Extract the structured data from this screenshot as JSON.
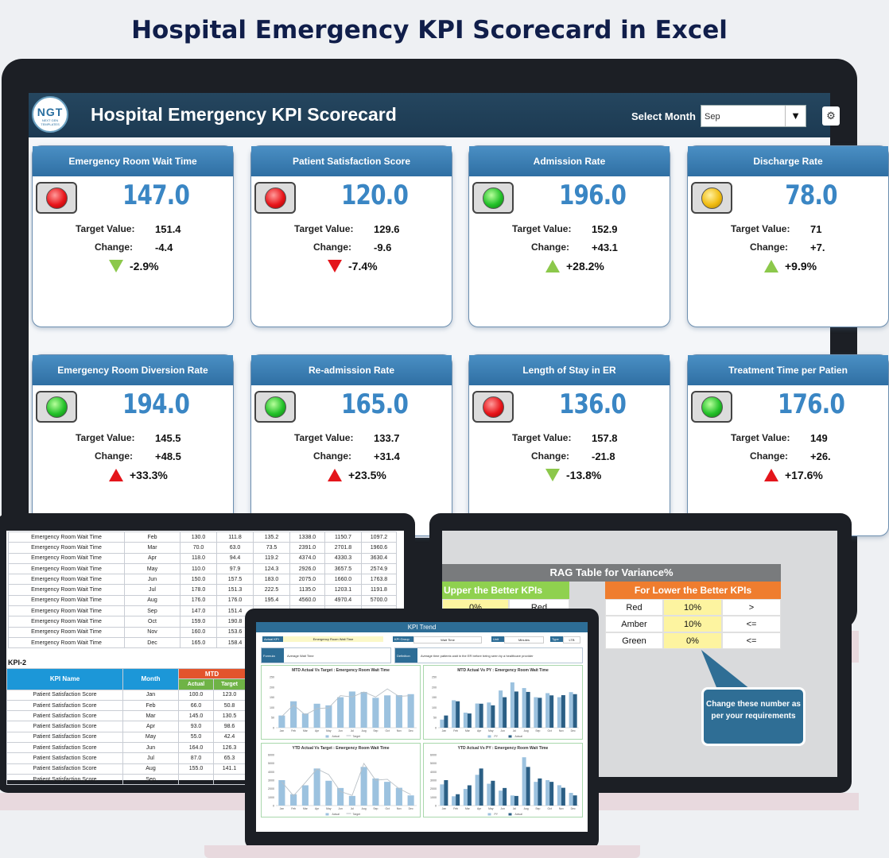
{
  "page_title": "Hospital Emergency KPI Scorecard in Excel",
  "dashboard": {
    "logo_text": "NGT",
    "logo_sub": "NEXT GEN TEMPLATES",
    "title": "Hospital Emergency KPI Scorecard",
    "month_label": "Select Month",
    "month_value": "Sep",
    "target_label": "Target Value:",
    "change_label": "Change:",
    "cards": [
      {
        "title": "Emergency Room Wait Time",
        "value": "147.0",
        "status": "red",
        "target": "151.4",
        "change": "-4.4",
        "pct": "-2.9%",
        "arrow": "down",
        "arrow_color": "green"
      },
      {
        "title": "Patient Satisfaction Score",
        "value": "120.0",
        "status": "red",
        "target": "129.6",
        "change": "-9.6",
        "pct": "-7.4%",
        "arrow": "down",
        "arrow_color": "red"
      },
      {
        "title": "Admission Rate",
        "value": "196.0",
        "status": "green",
        "target": "152.9",
        "change": "+43.1",
        "pct": "+28.2%",
        "arrow": "up",
        "arrow_color": "green"
      },
      {
        "title": "Discharge Rate",
        "value": "78.0",
        "status": "amber",
        "target": "71",
        "change": "+7.",
        "pct": "+9.9%",
        "arrow": "up",
        "arrow_color": "green"
      },
      {
        "title": "Emergency Room Diversion Rate",
        "value": "194.0",
        "status": "green",
        "target": "145.5",
        "change": "+48.5",
        "pct": "+33.3%",
        "arrow": "up",
        "arrow_color": "red"
      },
      {
        "title": "Re-admission Rate",
        "value": "165.0",
        "status": "green",
        "target": "133.7",
        "change": "+31.4",
        "pct": "+23.5%",
        "arrow": "up",
        "arrow_color": "red"
      },
      {
        "title": "Length of Stay in ER",
        "value": "136.0",
        "status": "red",
        "target": "157.8",
        "change": "-21.8",
        "pct": "-13.8%",
        "arrow": "down",
        "arrow_color": "green"
      },
      {
        "title": "Treatment Time per Patien",
        "value": "176.0",
        "status": "green",
        "target": "149",
        "change": "+26.",
        "pct": "+17.6%",
        "arrow": "up",
        "arrow_color": "red"
      }
    ]
  },
  "data_sheet": {
    "kpi1_rows": [
      [
        "Emergency Room Wait Time",
        "Feb",
        "130.0",
        "111.8",
        "135.2",
        "1338.0",
        "1150.7",
        "1097.2"
      ],
      [
        "Emergency Room Wait Time",
        "Mar",
        "70.0",
        "63.0",
        "73.5",
        "2391.0",
        "2701.8",
        "1960.6"
      ],
      [
        "Emergency Room Wait Time",
        "Apr",
        "118.0",
        "94.4",
        "119.2",
        "4374.0",
        "4330.3",
        "3630.4"
      ],
      [
        "Emergency Room Wait Time",
        "May",
        "110.0",
        "97.9",
        "124.3",
        "2926.0",
        "3657.5",
        "2574.9"
      ],
      [
        "Emergency Room Wait Time",
        "Jun",
        "150.0",
        "157.5",
        "183.0",
        "2075.0",
        "1660.0",
        "1763.8"
      ],
      [
        "Emergency Room Wait Time",
        "Jul",
        "178.0",
        "151.3",
        "222.5",
        "1135.0",
        "1203.1",
        "1191.8"
      ],
      [
        "Emergency Room Wait Time",
        "Aug",
        "176.0",
        "176.0",
        "195.4",
        "4560.0",
        "4970.4",
        "5700.0"
      ],
      [
        "Emergency Room Wait Time",
        "Sep",
        "147.0",
        "151.4",
        "",
        "",
        "",
        ""
      ],
      [
        "Emergency Room Wait Time",
        "Oct",
        "159.0",
        "190.8",
        "",
        "",
        "",
        ""
      ],
      [
        "Emergency Room Wait Time",
        "Nov",
        "160.0",
        "153.6",
        "",
        "",
        "",
        ""
      ],
      [
        "Emergency Room Wait Time",
        "Dec",
        "165.0",
        "158.4",
        "",
        "",
        "",
        ""
      ]
    ],
    "kpi2_label": "KPI-2",
    "kpi2_headers": {
      "name": "KPI Name",
      "month": "Month",
      "mtd": "MTD",
      "actual": "Actual",
      "target": "Target"
    },
    "kpi2_rows": [
      [
        "Patient Satisfaction Score",
        "Jan",
        "100.0",
        "123.0"
      ],
      [
        "Patient Satisfaction Score",
        "Feb",
        "66.0",
        "50.8"
      ],
      [
        "Patient Satisfaction Score",
        "Mar",
        "145.0",
        "130.5"
      ],
      [
        "Patient Satisfaction Score",
        "Apr",
        "93.0",
        "98.6"
      ],
      [
        "Patient Satisfaction Score",
        "May",
        "55.0",
        "42.4"
      ],
      [
        "Patient Satisfaction Score",
        "Jun",
        "164.0",
        "126.3"
      ],
      [
        "Patient Satisfaction Score",
        "Jul",
        "87.0",
        "65.3"
      ],
      [
        "Patient Satisfaction Score",
        "Aug",
        "155.0",
        "141.1"
      ],
      [
        "Patient Satisfaction Score",
        "Sep",
        "",
        ""
      ]
    ]
  },
  "rag_sheet": {
    "title": "RAG Table for Variance%",
    "upper_head": "Upper the Better KPIs",
    "upper_rows": [
      [
        "0%",
        "Red"
      ]
    ],
    "lower_head": "For Lower the Better KPIs",
    "lower_rows": [
      [
        "Red",
        "10%",
        ">"
      ],
      [
        "Amber",
        "10%",
        "<="
      ],
      [
        "Green",
        "0%",
        "<="
      ]
    ],
    "callout": "Change these number as per your requirements"
  },
  "kpi_trend": {
    "title": "KPI Trend",
    "actual_kpi_label": "Actual KPI",
    "actual_kpi_value": "Emergency Room Wait Time",
    "kpi_group_label": "KPI Group",
    "kpi_group_value": "Wait Time",
    "unit_label": "Unit",
    "unit_value": "Minutes",
    "type_label": "Type",
    "type_value": "LTB",
    "formula_label": "Formula",
    "formula_value": "Average Wait Time",
    "definition_label": "Definition",
    "definition_value": "Average time patients wait in the ER before being seen by a healthcare provider",
    "colors": {
      "dark": "#2b5f85",
      "light": "#9cc2df",
      "line": "#b9c0c6"
    }
  },
  "chart_data": [
    {
      "type": "bar",
      "title": "MTD Actual Vs Target : Emergency Room Wait Time",
      "categories": [
        "Jan",
        "Feb",
        "Mar",
        "Apr",
        "May",
        "Jun",
        "Jul",
        "Aug",
        "Sep",
        "Oct",
        "Nov",
        "Dec"
      ],
      "ylim": [
        0,
        250
      ],
      "yticks": [
        "250",
        "200",
        "150",
        "100",
        "50",
        "0"
      ],
      "series": [
        {
          "name": "Actual",
          "style": "bar",
          "values": [
            60,
            130,
            70,
            118,
            110,
            150,
            178,
            176,
            147,
            159,
            160,
            165
          ]
        },
        {
          "name": "Target",
          "style": "line",
          "values": [
            55,
            112,
            63,
            94,
            98,
            158,
            151,
            176,
            151,
            191,
            154,
            158
          ]
        }
      ]
    },
    {
      "type": "bar",
      "title": "MTD Actual Vs PY : Emergency Room Wait Time",
      "categories": [
        "Jan",
        "Feb",
        "Mar",
        "Apr",
        "May",
        "Jun",
        "Jul",
        "Aug",
        "Sep",
        "Oct",
        "Nov",
        "Dec"
      ],
      "ylim": [
        0,
        250
      ],
      "yticks": [
        "250",
        "200",
        "150",
        "100",
        "50",
        "0"
      ],
      "series": [
        {
          "name": "PY",
          "style": "bar-light",
          "values": [
            40,
            135,
            74,
            119,
            124,
            183,
            223,
            195,
            150,
            170,
            150,
            175
          ]
        },
        {
          "name": "Actual",
          "style": "bar-dark",
          "values": [
            60,
            130,
            70,
            118,
            110,
            150,
            178,
            176,
            147,
            159,
            160,
            165
          ]
        }
      ]
    },
    {
      "type": "bar",
      "title": "YTD Actual Vs Target : Emergency Room Wait Time",
      "categories": [
        "Jan",
        "Feb",
        "Mar",
        "Apr",
        "May",
        "Jun",
        "Jul",
        "Aug",
        "Sep",
        "Oct",
        "Nov",
        "Dec"
      ],
      "ylim": [
        0,
        6000
      ],
      "yticks": [
        "6000",
        "5000",
        "4000",
        "3000",
        "2000",
        "1000",
        "0"
      ],
      "series": [
        {
          "name": "Actual",
          "style": "bar",
          "values": [
            3000,
            1338,
            2391,
            4374,
            2926,
            2075,
            1135,
            4560,
            3200,
            2800,
            2100,
            1200
          ]
        },
        {
          "name": "Target",
          "style": "line",
          "values": [
            2800,
            1151,
            2702,
            4330,
            3658,
            1660,
            1203,
            4970,
            3000,
            3100,
            2000,
            1300
          ]
        }
      ]
    },
    {
      "type": "bar",
      "title": "YTD Actual Vs PY : Emergency Room Wait Time",
      "categories": [
        "Jan",
        "Feb",
        "Mar",
        "Apr",
        "May",
        "Jun",
        "Jul",
        "Aug",
        "Sep",
        "Oct",
        "Nov",
        "Dec"
      ],
      "ylim": [
        0,
        6000
      ],
      "yticks": [
        "6000",
        "5000",
        "4000",
        "3000",
        "2000",
        "1000",
        "0"
      ],
      "series": [
        {
          "name": "PY",
          "style": "bar-light",
          "values": [
            2500,
            1097,
            1961,
            3630,
            2575,
            1764,
            1192,
            5700,
            2800,
            3000,
            2400,
            1500
          ]
        },
        {
          "name": "Actual",
          "style": "bar-dark",
          "values": [
            3000,
            1338,
            2391,
            4374,
            2926,
            2075,
            1135,
            4560,
            3200,
            2800,
            2100,
            1200
          ]
        }
      ]
    }
  ]
}
